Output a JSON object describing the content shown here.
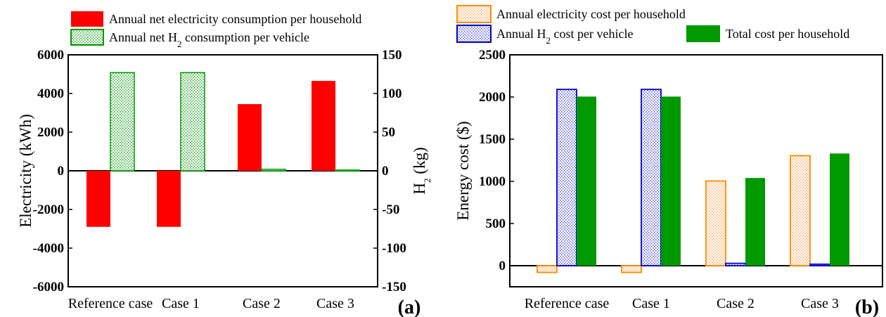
{
  "chart_data": [
    {
      "panel_label": "(a)",
      "type": "bar",
      "categories": [
        "Reference case",
        "Case 1",
        "Case 2",
        "Case 3"
      ],
      "series": [
        {
          "name": "Annual net electricity consumption per household",
          "axis": "left",
          "color": "#ff0000",
          "fill": "solid",
          "values": [
            -2900,
            -2900,
            3450,
            4650
          ]
        },
        {
          "name": "Annual net H₂ consumption per vehicle",
          "axis": "right",
          "color": "#009900",
          "fill": "dotted",
          "values": [
            127,
            127,
            2,
            1
          ]
        }
      ],
      "ylabel": "Electricity (kWh)",
      "ylim": [
        -6000,
        6000
      ],
      "yticks": [
        -6000,
        -4000,
        -2000,
        0,
        2000,
        4000,
        6000
      ],
      "y2label": "H₂ (kg)",
      "y2lim": [
        -150,
        150
      ],
      "y2ticks": [
        -150,
        -100,
        -50,
        0,
        50,
        100,
        150
      ],
      "legend_position": "top"
    },
    {
      "panel_label": "(b)",
      "type": "bar",
      "categories": [
        "Reference case",
        "Case 1",
        "Case 2",
        "Case 3"
      ],
      "series": [
        {
          "name": "Annual electricity cost per household",
          "color": "#ff8c00",
          "fill": "dotted",
          "values": [
            -80,
            -80,
            1005,
            1305
          ]
        },
        {
          "name": "Annual H₂ cost per vehicle",
          "color": "#0000cc",
          "fill": "dotted",
          "values": [
            2090,
            2090,
            28,
            18
          ]
        },
        {
          "name": "Total cost per household",
          "color": "#009900",
          "fill": "solid",
          "values": [
            2005,
            2005,
            1040,
            1330
          ]
        }
      ],
      "ylabel": "Energy cost ($)",
      "ylim": [
        -250,
        2500
      ],
      "yticks": [
        0,
        500,
        1000,
        1500,
        2000,
        2500
      ],
      "legend_position": "top"
    }
  ]
}
